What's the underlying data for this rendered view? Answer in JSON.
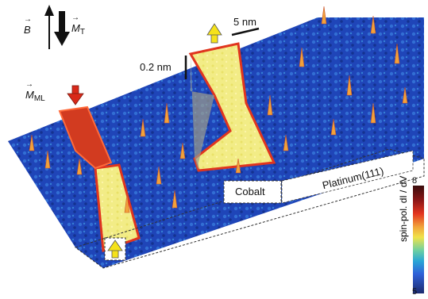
{
  "labels": {
    "b_field": "B",
    "m_tip": "M",
    "m_tip_sub": "T",
    "m_ml": "M",
    "m_ml_sub": "ML",
    "scale_xy": "5 nm",
    "scale_z": "0.2 nm",
    "cobalt": "Cobalt",
    "platinum": "Platinum(111)",
    "colorbar_title": "spin-pol. dI / dV",
    "colorbar_max": "8",
    "colorbar_min": "5"
  },
  "colors": {
    "substrate": "#1f45b8",
    "island_yellow": "#f2ec86",
    "island_edge_red": "#e0351e",
    "arrow_yellow": "#f5e21a",
    "arrow_red": "#d8291a"
  },
  "icons": [
    "up-arrow-icon",
    "down-arrow-icon"
  ]
}
